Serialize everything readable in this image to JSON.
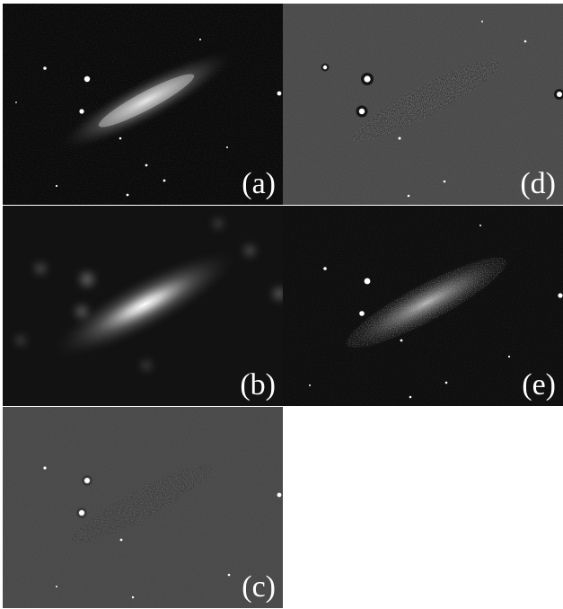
{
  "panels": [
    {
      "id": "a",
      "label": "(a)"
    },
    {
      "id": "b",
      "label": "(b)"
    },
    {
      "id": "c",
      "label": "(c)"
    },
    {
      "id": "d",
      "label": "(d)"
    },
    {
      "id": "e",
      "label": "(e)"
    }
  ]
}
